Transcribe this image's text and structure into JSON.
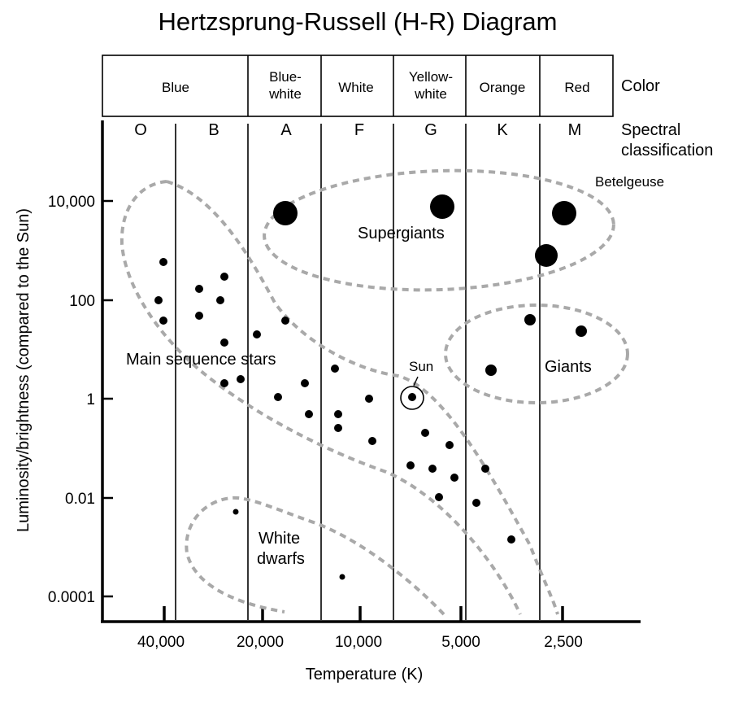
{
  "title": "Hertzsprung-Russell (H-R) Diagram",
  "color_header": "Color",
  "spectral_header_line1": "Spectral",
  "spectral_header_line2": "classification",
  "colors": {
    "blue": "Blue",
    "blue_white_1": "Blue-",
    "blue_white_2": "white",
    "white": "White",
    "yellow_white_1": "Yellow-",
    "yellow_white_2": "white",
    "orange": "Orange",
    "red": "Red"
  },
  "spectral": [
    "O",
    "B",
    "A",
    "F",
    "G",
    "K",
    "M"
  ],
  "y_axis_label": "Luminosity/brightness (compared to the Sun)",
  "y_ticks": [
    "10,000",
    "100",
    "1",
    "0.01",
    "0.0001"
  ],
  "x_axis_label": "Temperature (K)",
  "x_ticks": [
    "40,000",
    "20,000",
    "10,000",
    "5,000",
    "2,500"
  ],
  "regions": {
    "supergiants": "Supergiants",
    "giants": "Giants",
    "main_sequence": "Main sequence stars",
    "white_dwarfs_1": "White",
    "white_dwarfs_2": "dwarfs"
  },
  "annotations": {
    "sun": "Sun",
    "betelgeuse": "Betelgeuse"
  },
  "style": {
    "region_outline": "#a9a9a9",
    "ink": "#000000"
  }
}
